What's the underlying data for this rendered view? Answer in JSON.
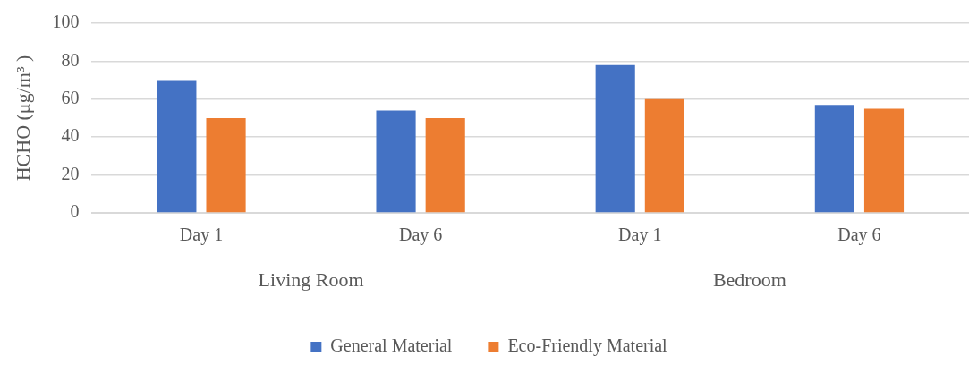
{
  "chart_data": {
    "type": "bar",
    "ylabel": "HCHO (μg/m³ )",
    "categories": [
      "Day 1",
      "Day 6",
      "Day 1",
      "Day 6"
    ],
    "annotations": [
      "Living Room",
      "Bedroom"
    ],
    "series": [
      {
        "name": "General Material",
        "color": "#4472c4",
        "values": [
          70,
          54,
          78,
          57
        ]
      },
      {
        "name": "Eco-Friendly Material",
        "color": "#ed7d31",
        "values": [
          50,
          50,
          60,
          55
        ]
      }
    ],
    "ylim": [
      0,
      100
    ],
    "yticks": [
      0,
      20,
      40,
      60,
      80,
      100
    ],
    "grid": "y",
    "legend": "bottom"
  }
}
